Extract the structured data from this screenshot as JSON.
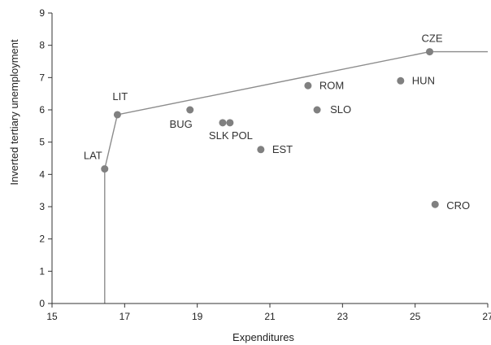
{
  "chart_data": {
    "type": "scatter",
    "title": "",
    "xlabel": "Expenditures",
    "ylabel": "Inverted tertiary unemployment",
    "xlim": [
      15,
      27
    ],
    "ylim": [
      0,
      9
    ],
    "x_ticks": [
      "15",
      "17",
      "19",
      "21",
      "23",
      "25",
      "27"
    ],
    "y_ticks": [
      "0",
      "1",
      "2",
      "3",
      "4",
      "5",
      "6",
      "7",
      "8",
      "9"
    ],
    "grid": false,
    "legend": "none",
    "colors": {
      "marker": "#808080",
      "frontier": "#8c8c8c",
      "axis": "#333333"
    },
    "points": [
      {
        "label": "LAT",
        "x": 16.45,
        "y": 4.17
      },
      {
        "label": "LIT",
        "x": 16.8,
        "y": 5.85
      },
      {
        "label": "BUG",
        "x": 18.8,
        "y": 6.0
      },
      {
        "label": "SLK",
        "x": 19.7,
        "y": 5.6
      },
      {
        "label": "POL",
        "x": 19.9,
        "y": 5.6
      },
      {
        "label": "EST",
        "x": 20.75,
        "y": 4.77
      },
      {
        "label": "ROM",
        "x": 22.05,
        "y": 6.75
      },
      {
        "label": "SLO",
        "x": 22.3,
        "y": 6.0
      },
      {
        "label": "HUN",
        "x": 24.6,
        "y": 6.9
      },
      {
        "label": "CZE",
        "x": 25.4,
        "y": 7.8
      },
      {
        "label": "CRO",
        "x": 25.55,
        "y": 3.07
      }
    ],
    "frontier": [
      {
        "x": 16.45,
        "y": 0
      },
      {
        "x": 16.45,
        "y": 4.17
      },
      {
        "x": 16.8,
        "y": 5.85
      },
      {
        "x": 25.4,
        "y": 7.8
      },
      {
        "x": 27,
        "y": 7.8
      }
    ]
  }
}
